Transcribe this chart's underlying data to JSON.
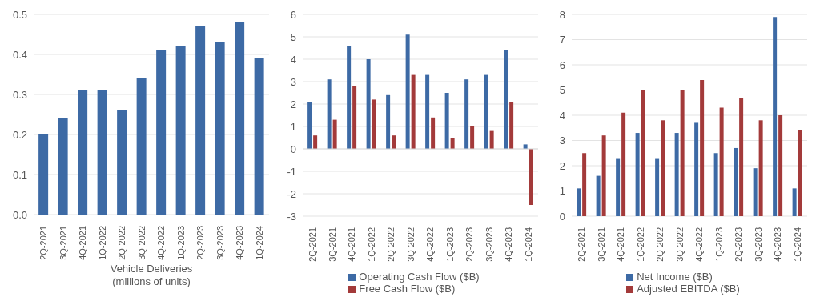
{
  "chart_data": [
    {
      "type": "bar",
      "xlabel": "Vehicle Deliveries\n(millions of units)",
      "categories": [
        "2Q-2021",
        "3Q-2021",
        "4Q-2021",
        "1Q-2022",
        "2Q-2022",
        "3Q-2022",
        "4Q-2022",
        "1Q-2023",
        "2Q-2023",
        "3Q-2023",
        "4Q-2023",
        "1Q-2024"
      ],
      "values": [
        0.2,
        0.24,
        0.31,
        0.31,
        0.26,
        0.34,
        0.41,
        0.42,
        0.47,
        0.43,
        0.48,
        0.39
      ],
      "color": "#3d6aa5",
      "ylim": [
        0,
        0.5
      ],
      "yticks": [
        {
          "value": 0,
          "label": "0.0"
        },
        0.1,
        0.2,
        0.3,
        0.4,
        0.5
      ],
      "grid": "y"
    },
    {
      "type": "bar",
      "categories": [
        "2Q-2021",
        "3Q-2021",
        "4Q-2021",
        "1Q-2022",
        "2Q-2022",
        "3Q-2022",
        "4Q-2022",
        "1Q-2023",
        "2Q-2023",
        "3Q-2023",
        "4Q-2023",
        "1Q-2024"
      ],
      "series": [
        {
          "name": "Operating Cash Flow ($B)",
          "color": "#3d6aa5",
          "values": [
            2.1,
            3.1,
            4.6,
            4.0,
            2.4,
            5.1,
            3.3,
            2.5,
            3.1,
            3.3,
            4.4,
            0.2
          ]
        },
        {
          "name": "Free Cash Flow ($B)",
          "color": "#a33a3a",
          "values": [
            0.6,
            1.3,
            2.8,
            2.2,
            0.6,
            3.3,
            1.4,
            0.5,
            1.0,
            0.8,
            2.1,
            -2.5
          ]
        }
      ],
      "ylim": [
        -3,
        6
      ],
      "yticks": [
        -3,
        -2,
        -1,
        0,
        1,
        2,
        3,
        4,
        5,
        6
      ],
      "grid": "y",
      "legend": "bottom"
    },
    {
      "type": "bar",
      "categories": [
        "2Q-2021",
        "3Q-2021",
        "4Q-2021",
        "1Q-2022",
        "2Q-2022",
        "3Q-2022",
        "4Q-2022",
        "1Q-2023",
        "2Q-2023",
        "3Q-2023",
        "4Q-2023",
        "1Q-2024"
      ],
      "series": [
        {
          "name": "Net Income ($B)",
          "color": "#3d6aa5",
          "values": [
            1.1,
            1.6,
            2.3,
            3.3,
            2.3,
            3.3,
            3.7,
            2.5,
            2.7,
            1.9,
            7.9,
            1.1
          ]
        },
        {
          "name": "Adjusted EBITDA ($B)",
          "color": "#a33a3a",
          "values": [
            2.5,
            3.2,
            4.1,
            5.0,
            3.8,
            5.0,
            5.4,
            4.3,
            4.7,
            3.8,
            4.0,
            3.4
          ]
        }
      ],
      "ylim": [
        0,
        8
      ],
      "yticks": [
        0,
        1,
        2,
        3,
        4,
        5,
        6,
        7,
        8
      ],
      "grid": "y",
      "legend": "bottom"
    }
  ]
}
